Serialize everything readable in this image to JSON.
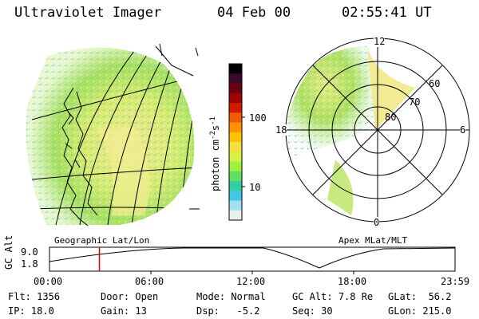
{
  "header": {
    "instrument": "Ultraviolet Imager",
    "date": "04 Feb 00",
    "time": "02:55:41 UT"
  },
  "left_panel": {
    "label": "Geographic Lat/Lon"
  },
  "right_panel": {
    "label": "Apex MLat/MLT",
    "mlt_labels": [
      "12",
      "18",
      "6",
      "0"
    ],
    "lat_labels": [
      "60",
      "70",
      "80"
    ]
  },
  "colorbar": {
    "unit": "photon cm",
    "unit_exp1": "-2",
    "unit_mid": "s",
    "unit_exp2": "-1",
    "ticks": [
      "100",
      "10"
    ],
    "colors": [
      "#000000",
      "#3a0a2a",
      "#6a0010",
      "#a00000",
      "#d01a00",
      "#f05a00",
      "#ff9000",
      "#ffc000",
      "#f0e040",
      "#d8f040",
      "#a0f040",
      "#60e060",
      "#30d0a0",
      "#40c8e8",
      "#a0e0f0",
      "#e8f0f0"
    ]
  },
  "timeline": {
    "ylabel": "GC Alt",
    "ymax": "9.0",
    "ymin": "1.8",
    "xticks": [
      "00:00",
      "06:00",
      "12:00",
      "18:00",
      "23:59"
    ],
    "marker_fraction": 0.123
  },
  "footer": {
    "flt_label": "Flt:",
    "flt_value": "1356",
    "ip_label": "IP:",
    "ip_value": "18.0",
    "door_label": "Door:",
    "door_value": "Open",
    "gain_label": "Gain:",
    "gain_value": "13",
    "mode_label": "Mode:",
    "mode_value": "Normal",
    "dsp_label": "Dsp:",
    "dsp_value": "-5.2",
    "gcalt_label": "GC Alt:",
    "gcalt_value": "7.8 Re",
    "seq_label": "Seq:",
    "seq_value": "30",
    "glat_label": "GLat:",
    "glat_value": "56.2",
    "glon_label": "GLon:",
    "glon_value": "215.0"
  }
}
